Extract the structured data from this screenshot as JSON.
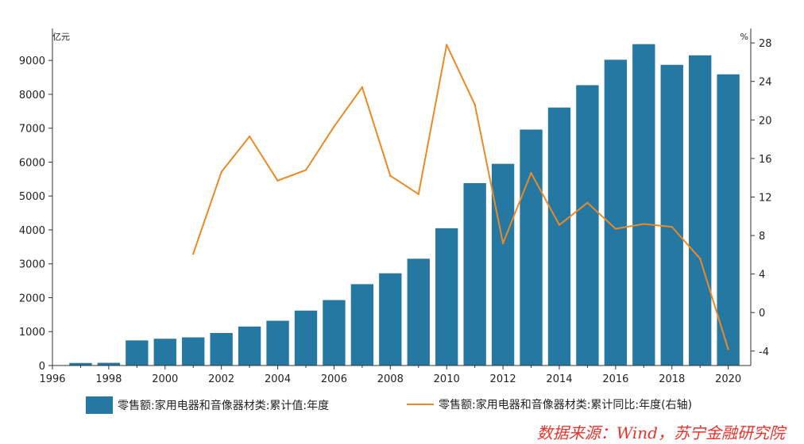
{
  "chart_data": {
    "type": "bar",
    "left_unit": "亿元",
    "right_unit": "%",
    "x_ticks": [
      "1996",
      "1998",
      "2000",
      "2002",
      "2004",
      "2006",
      "2008",
      "2010",
      "2012",
      "2014",
      "2016",
      "2018",
      "2020"
    ],
    "y_left_ticks": [
      "0",
      "1000",
      "2000",
      "3000",
      "4000",
      "5000",
      "6000",
      "7000",
      "8000",
      "9000"
    ],
    "y_right_ticks": [
      "-4",
      "0",
      "4",
      "8",
      "12",
      "16",
      "20",
      "24",
      "28"
    ],
    "ylim_left": [
      0,
      9800
    ],
    "ylim_right": [
      -5.5,
      29
    ],
    "xlim": [
      1996,
      2020.8
    ],
    "years": [
      1997,
      1998,
      1999,
      2000,
      2001,
      2002,
      2003,
      2004,
      2005,
      2006,
      2007,
      2008,
      2009,
      2010,
      2011,
      2012,
      2013,
      2014,
      2015,
      2016,
      2017,
      2018,
      2019,
      2020
    ],
    "series": [
      {
        "name": "零售额:家用电器和音像器材类:累计值:年度",
        "type": "bar",
        "axis": "left",
        "color": "#2478a2",
        "values": [
          75,
          80,
          740,
          790,
          830,
          960,
          1150,
          1320,
          1620,
          1930,
          2400,
          2720,
          3150,
          4050,
          5380,
          5950,
          6960,
          7610,
          8270,
          9020,
          9480,
          8870,
          9150,
          8590
        ]
      },
      {
        "name": "零售额:家用电器和音像器材类:累计同比:年度(右轴)",
        "type": "line",
        "axis": "right",
        "color": "#ea8a26",
        "points": [
          [
            2001,
            6.1
          ],
          [
            2002,
            14.6
          ],
          [
            2003,
            18.3
          ],
          [
            2004,
            13.7
          ],
          [
            2005,
            14.8
          ],
          [
            2006,
            19.3
          ],
          [
            2007,
            23.4
          ],
          [
            2008,
            14.2
          ],
          [
            2009,
            12.3
          ],
          [
            2010,
            27.8
          ],
          [
            2011,
            21.6
          ],
          [
            2012,
            7.2
          ],
          [
            2013,
            14.5
          ],
          [
            2014,
            9.1
          ],
          [
            2015,
            11.4
          ],
          [
            2016,
            8.7
          ],
          [
            2017,
            9.2
          ],
          [
            2018,
            8.9
          ],
          [
            2019,
            5.6
          ],
          [
            2020,
            -3.8
          ]
        ]
      }
    ],
    "legend_position": "bottom",
    "grid": false
  },
  "source_text": "数据来源：Wind，苏宁金融研究院"
}
